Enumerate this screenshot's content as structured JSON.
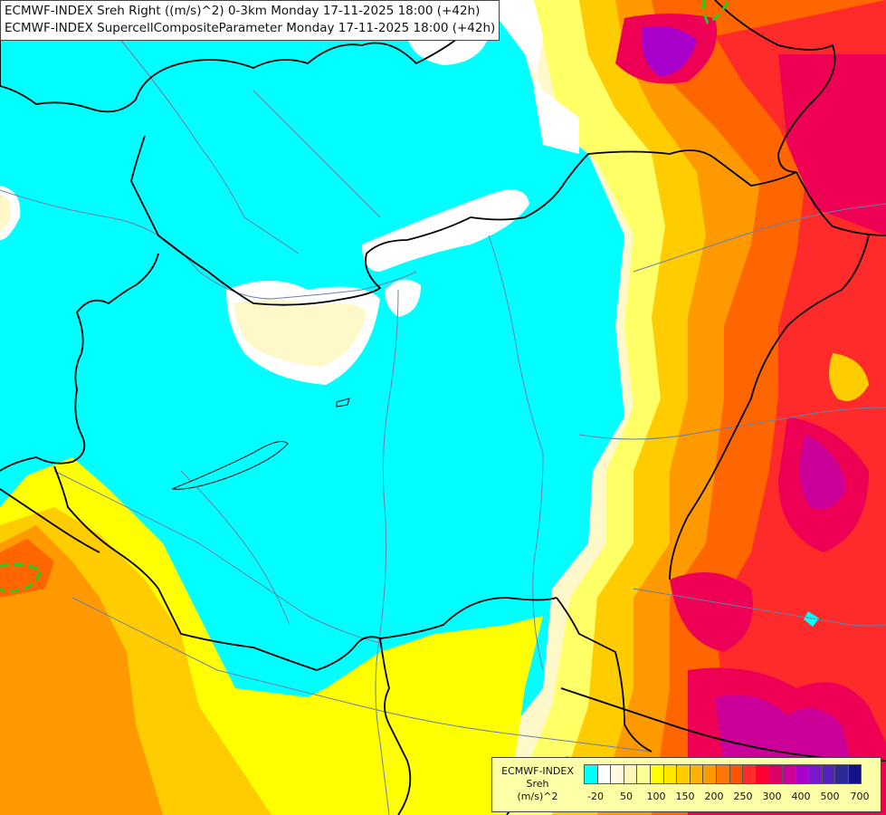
{
  "header": {
    "line1": "ECMWF-INDEX Sreh Right ((m/s)^2) 0-3km Monday 17-11-2025 18:00 (+42h)",
    "line2": "ECMWF-INDEX SupercellCompositeParameter Monday 17-11-2025 18:00 (+42h)"
  },
  "legend": {
    "source": "ECMWF-INDEX",
    "variable": "Sreh",
    "unit": "(m/s)^2",
    "colors": [
      "#00ffff",
      "#ffffff",
      "#fffbe0",
      "#fff5b8",
      "#ffff99",
      "#ffff00",
      "#ffe600",
      "#ffcc00",
      "#ffb300",
      "#ff9900",
      "#ff7700",
      "#ff5500",
      "#ff2a2a",
      "#ff0033",
      "#dd0066",
      "#cc0099",
      "#aa00cc",
      "#7a1acc",
      "#5522bb",
      "#2a2a99",
      "#111188"
    ],
    "tick_labels": [
      "-20",
      "50",
      "100",
      "150",
      "200",
      "250",
      "300",
      "400",
      "500",
      "700"
    ]
  },
  "map": {
    "palette": {
      "cyan": "#00ffff",
      "white": "#ffffff",
      "cream": "#fff8c8",
      "yellow": "#ffff00",
      "orange": "#ffb000",
      "dark_orange": "#ff7700",
      "red": "#ff2a2a",
      "crimson": "#ee0055",
      "magenta": "#cc0099",
      "purple": "#aa00cc",
      "border": "#000000",
      "river": "#6b7fa8",
      "contour": "#22cc22"
    }
  }
}
